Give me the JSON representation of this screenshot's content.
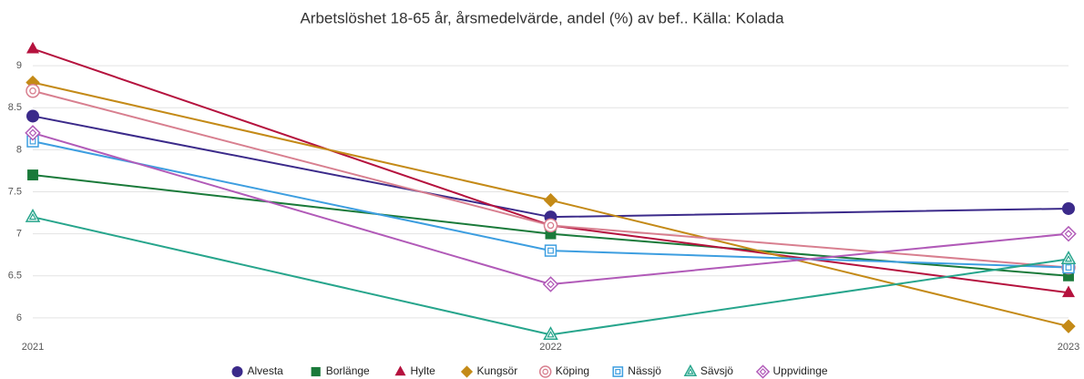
{
  "chart_data": {
    "type": "line",
    "title": "Arbetslöshet 18-65 år, årsmedelvärde, andel (%) av bef.. Källa: Kolada",
    "categories": [
      "2021",
      "2022",
      "2023"
    ],
    "series": [
      {
        "name": "Alvesta",
        "color": "#3b2a8a",
        "marker": "circle",
        "values": [
          8.4,
          7.2,
          7.3
        ]
      },
      {
        "name": "Borlänge",
        "color": "#1a7a3a",
        "marker": "square",
        "values": [
          7.7,
          7.0,
          6.5
        ]
      },
      {
        "name": "Hylte",
        "color": "#b5123e",
        "marker": "triangle",
        "values": [
          9.2,
          7.1,
          6.3
        ]
      },
      {
        "name": "Kungsör",
        "color": "#c48a17",
        "marker": "diamond",
        "values": [
          8.8,
          7.4,
          5.9
        ]
      },
      {
        "name": "Köping",
        "color": "#d87f8f",
        "marker": "ring",
        "values": [
          8.7,
          7.1,
          6.6
        ]
      },
      {
        "name": "Nässjö",
        "color": "#3d9ee0",
        "marker": "open-square",
        "values": [
          8.1,
          6.8,
          6.6
        ]
      },
      {
        "name": "Sävsjö",
        "color": "#27a58c",
        "marker": "open-triangle",
        "values": [
          7.2,
          5.8,
          6.7
        ]
      },
      {
        "name": "Uppvidinge",
        "color": "#b15ab8",
        "marker": "open-diamond",
        "values": [
          8.2,
          6.4,
          7.0
        ]
      }
    ],
    "ylim": [
      5.75,
      9.25
    ],
    "yticks": [
      6,
      6.5,
      7,
      7.5,
      8,
      8.5,
      9
    ],
    "grid": true,
    "legend": "bottom"
  }
}
